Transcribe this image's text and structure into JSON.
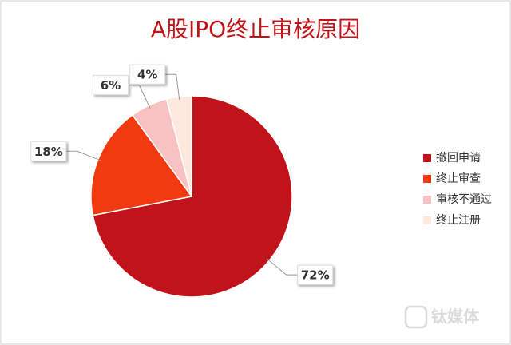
{
  "chart_data": {
    "type": "pie",
    "title": "A股IPO终止审核原因",
    "categories": [
      "撤回申请",
      "终止审查",
      "审核不通过",
      "终止注册"
    ],
    "values": [
      72,
      18,
      6,
      4
    ],
    "value_labels": [
      "72%",
      "18%",
      "6%",
      "4%"
    ],
    "colors": [
      "#c0141a",
      "#f23a10",
      "#f8c2c2",
      "#fde8dd"
    ],
    "legend": "right",
    "watermark": "钛媒体"
  }
}
